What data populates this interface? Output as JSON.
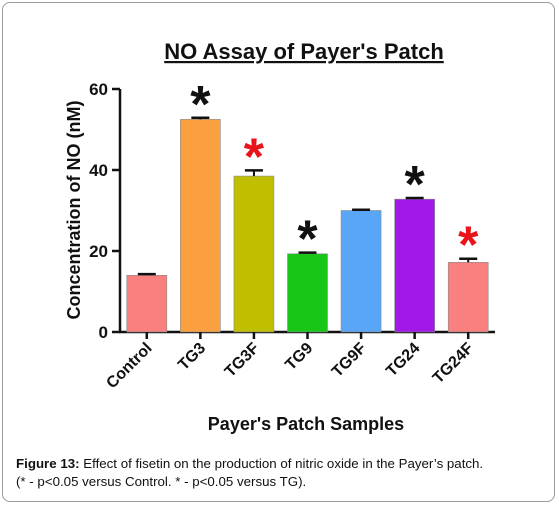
{
  "figure": {
    "label": "Figure 13:",
    "caption_line1": "Effect of fisetin on the production of nitric oxide in the Payer’s patch.",
    "caption_line2": "(* - p<0.05 versus Control. * - p<0.05 versus TG)."
  },
  "chart_data": {
    "type": "bar",
    "title": "NO Assay of Payer's Patch",
    "xlabel": "Payer's Patch Samples",
    "ylabel": "Concentration of NO (nM)",
    "ylim": [
      0,
      60
    ],
    "yticks": [
      0,
      20,
      40,
      60
    ],
    "categories": [
      "Control",
      "TG3",
      "TG3F",
      "TG9",
      "TG9F",
      "TG24",
      "TG24F"
    ],
    "values": [
      14,
      52.5,
      38.5,
      19.3,
      30,
      32.8,
      17.2
    ],
    "errors": [
      0.3,
      0.4,
      1.4,
      0.3,
      0.2,
      0.3,
      0.9
    ],
    "colors": [
      "#fa8080",
      "#fba040",
      "#bfbf00",
      "#17c617",
      "#5aa6f6",
      "#a118e8",
      "#fa8080"
    ],
    "significance": [
      "",
      "black",
      "red",
      "black",
      "",
      "black",
      "red"
    ],
    "significance_colors": {
      "black": "#111111",
      "red": "#e8141a"
    }
  }
}
